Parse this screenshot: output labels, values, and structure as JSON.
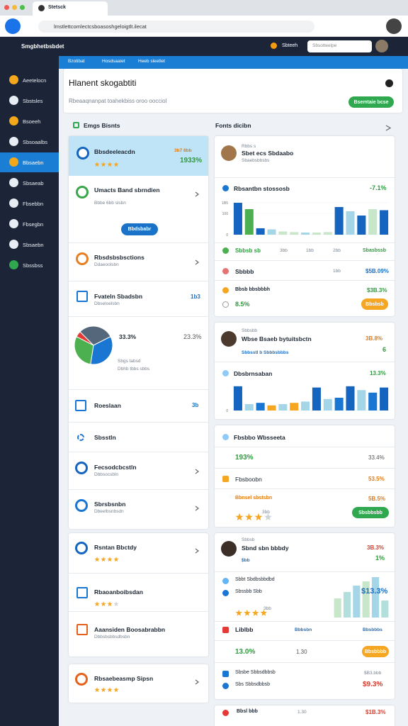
{
  "browser": {
    "tab": "Stetsck",
    "url": "lmstlettcomlectcsboasoshgeloigtlt.ilecat"
  },
  "app": {
    "brand": "Smgbhetbsbdet",
    "user": "Sbteeh",
    "search": "Sbsotteelpe"
  },
  "sidebar": {
    "active": 4,
    "items": [
      "Aeetelocn",
      "Sbstsles",
      "Bsoeeh",
      "Sbsoaalbs",
      "Bbsaebn",
      "Sbsaeab",
      "Fbsebbn",
      "Fbsegbn",
      "Sbsaebn",
      "Sbssbss"
    ]
  },
  "tabs": [
    "Bzotibat",
    "Hosdsaaiet",
    "Heeb sleetlet"
  ],
  "header": {
    "title": "Hlanent skogabtiti",
    "subtitle": "Rbeaaqnanpat toahekbiss oroo oocciol",
    "button": "Bsemtaie bcse"
  },
  "left": {
    "heading": "Emgs Bisnts",
    "items": [
      {
        "title": "Bbsdeeleacdn",
        "note": "3b7 8bb",
        "value": "1933%"
      },
      {
        "title": "Umacts Band sbrndien",
        "sub": "Bbbe 6bb slsbn",
        "button": "Bbdsbabr"
      },
      {
        "title": "Rbsdsbsbsctions",
        "sub": "Ddaeoolsbn"
      },
      {
        "title": "Fvateln Sbadsbn",
        "sub": "Dbseloelsbn",
        "value": "1b3"
      },
      {
        "title": "Roeslaan",
        "value": "3b"
      },
      {
        "title": "Sbsstln"
      },
      {
        "title": "Fecsodcbcstln",
        "sub": "Dbbsocsbln"
      },
      {
        "title": "Sbrsbsnbn",
        "sub": "Dbeelbsnbsdn"
      },
      {
        "title": "Rsntan Bbctdy"
      },
      {
        "title": "Rbaoanboibsdan"
      },
      {
        "title": "Aaansiden Boosabrabbn",
        "sub": "Dbbsbsbbsdbsbn"
      },
      {
        "title": "Rbsaebeasmp Sipsn"
      }
    ],
    "pie": {
      "values": [
        30,
        35,
        30,
        5
      ],
      "colors": [
        "#55677a",
        "#1976d2",
        "#4caf50",
        "#e53935"
      ],
      "label1": "33.3%",
      "label2": "23.3%",
      "sub1": "Sbgs tabsd",
      "sub2": "Dbhb tbbs sbbs"
    }
  },
  "right": {
    "heading": "Fonts dicibn",
    "cards": [
      {
        "kicker": "Rbbs s",
        "name": "Sbet ecs Sbdaabo",
        "sub": "Sbaebsbbsbs",
        "chart_title": "Rbsantbn stossosb",
        "change": "-7.1%",
        "chart": {
          "ylim": [
            0,
            160
          ],
          "yticks": [
            {
              "value": 150,
              "label": "1B5"
            },
            {
              "value": 100,
              "label": "100"
            },
            0
          ],
          "values": [
            150,
            120,
            30,
            25,
            15,
            12,
            10,
            10,
            12,
            130,
            110,
            90,
            120,
            115
          ],
          "colors": [
            "#1565c0",
            "#4caf50",
            "#1565c0",
            "#a5d6e7",
            "#c8e6c9",
            "#c8e6c9",
            "#a5d6e7",
            "#c8e6c9",
            "#c8e6c9",
            "#1565c0",
            "#a5d6e7",
            "#1565c0",
            "#c8e6c9",
            "#1565c0"
          ]
        },
        "rows": [
          {
            "label": "Sbbsb sb",
            "c1": "3bb",
            "c2": "1bb",
            "c3": "2bb",
            "value": "Sbasbssb"
          },
          {
            "label": "Sbbbb",
            "c1": "1bb",
            "value": "$5B.09%"
          },
          {
            "label": "Bbsb bbsbbbh",
            "value": "$3B.3%"
          },
          {
            "label": "8.5%",
            "button": "Bbsbsb"
          }
        ]
      },
      {
        "kicker": "Sbbsbb",
        "name": "Wbse Bsaeb bytuitsbctn",
        "sub": "Sbbsstl b Sbbbsbbbs",
        "value": "3B.8%",
        "value2": "6",
        "chart_title": "Dbsbrnsaban",
        "change": "13.3%",
        "chart": {
          "ylim": [
            0,
            100
          ],
          "yticks": [
            0
          ],
          "values": [
            95,
            25,
            30,
            20,
            25,
            30,
            35,
            90,
            45,
            50,
            95,
            80,
            70,
            90
          ],
          "colors": [
            "#1565c0",
            "#a5d6e7",
            "#1976d2",
            "#f5a623",
            "#a5d6e7",
            "#f5a623",
            "#a5d6e7",
            "#1565c0",
            "#a5d6e7",
            "#1976d2",
            "#1565c0",
            "#a5d6e7",
            "#1976d2",
            "#1565c0"
          ]
        }
      },
      {
        "title": "Fbsbbo Wbsseeta",
        "rows": [
          {
            "label": "193%",
            "value": "33.4%"
          },
          {
            "label": "Fbsboobn",
            "value": "53.5%"
          },
          {
            "label": "Bbnsel sbstsbn",
            "value": "5B.5%"
          },
          {
            "label": "3bb",
            "button": "Sbsbbsbb"
          }
        ]
      },
      {
        "kicker": "Sbbsb",
        "name": "Sbnd sbn bbbdy",
        "sub": "$bb",
        "value": "3B.3%",
        "value2": "1%",
        "chart": {
          "ylim": [
            0,
            100
          ],
          "yticks": [],
          "values": [
            45,
            60,
            75,
            85,
            95,
            40
          ],
          "colors": [
            "#c8e6c9",
            "#b2dfdb",
            "#a5d6e7",
            "#c8e6c9",
            "#a5d6e7",
            "#b2dfdb"
          ]
        },
        "rows": [
          {
            "label": "Sbbt Sbdbsbbdbd"
          },
          {
            "label": "Sbssbb Sbb",
            "value": "$13.3%"
          },
          {
            "label": "3bb"
          },
          {
            "label": "Liblbb",
            "c1": "Bbbsbn",
            "value": "Bbsbbbs"
          },
          {
            "label": "13.0%",
            "c1": "1.30",
            "button": "Bbsbbbb"
          },
          {
            "label": "Sbsbe Sbbsdbbsb",
            "value": "$B3.bbb"
          },
          {
            "label": "Sbs Sbbsdbbsb",
            "value": "$9.3%"
          }
        ]
      },
      {
        "rows": [
          {
            "label": "Bbsl bbb",
            "c1": "1.30",
            "value": "$1B.3%"
          }
        ]
      }
    ]
  }
}
